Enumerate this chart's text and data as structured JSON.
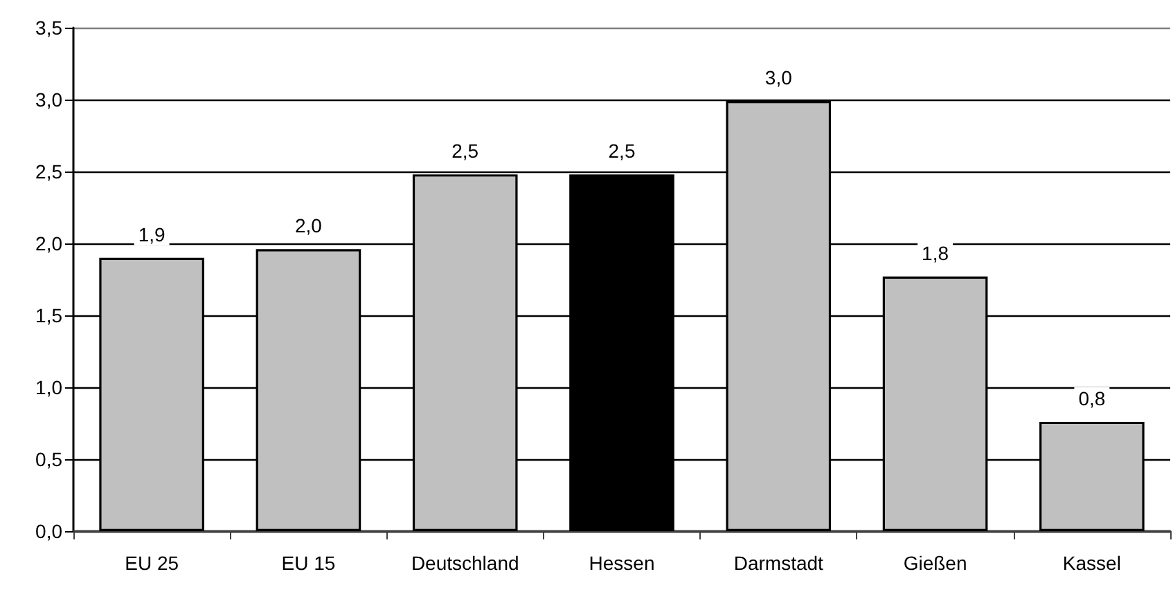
{
  "chart_data": {
    "type": "bar",
    "categories": [
      "EU 25",
      "EU 15",
      "Deutschland",
      "Hessen",
      "Darmstadt",
      "Gießen",
      "Kassel"
    ],
    "values": [
      1.9,
      1.96,
      2.48,
      2.48,
      2.99,
      1.77,
      0.76
    ],
    "value_labels": [
      "1,9",
      "2,0",
      "2,5",
      "2,5",
      "3,0",
      "1,8",
      "0,8"
    ],
    "colors": [
      "#c0c0c0",
      "#c0c0c0",
      "#c0c0c0",
      "#000000",
      "#c0c0c0",
      "#c0c0c0",
      "#c0c0c0"
    ],
    "ylim": [
      0,
      3.5
    ],
    "yticks": [
      {
        "value": 0,
        "label": "0,0"
      },
      {
        "value": 0.5,
        "label": "0,5"
      },
      {
        "value": 1,
        "label": "1,0"
      },
      {
        "value": 1.5,
        "label": "1,5"
      },
      {
        "value": 2,
        "label": "2,0"
      },
      {
        "value": 2.5,
        "label": "2,5"
      },
      {
        "value": 3,
        "label": "3,0"
      },
      {
        "value": 3.5,
        "label": "3,5"
      }
    ],
    "grid": "y"
  }
}
